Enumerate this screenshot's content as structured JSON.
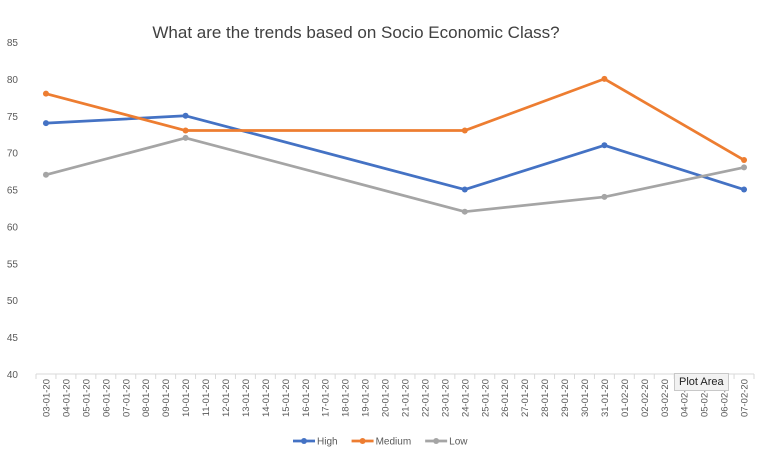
{
  "chart_data": {
    "type": "line",
    "title": "What are the trends based on Socio Economic Class?",
    "xlabel": "",
    "ylabel": "",
    "ylim": [
      40,
      85
    ],
    "yticks": [
      40,
      45,
      50,
      55,
      60,
      65,
      70,
      75,
      80,
      85
    ],
    "categories": [
      "03-01-20",
      "04-01-20",
      "05-01-20",
      "06-01-20",
      "07-01-20",
      "08-01-20",
      "09-01-20",
      "10-01-20",
      "11-01-20",
      "12-01-20",
      "13-01-20",
      "14-01-20",
      "15-01-20",
      "16-01-20",
      "17-01-20",
      "18-01-20",
      "19-01-20",
      "20-01-20",
      "21-01-20",
      "22-01-20",
      "23-01-20",
      "24-01-20",
      "25-01-20",
      "26-01-20",
      "27-01-20",
      "28-01-20",
      "29-01-20",
      "30-01-20",
      "31-01-20",
      "01-02-20",
      "02-02-20",
      "03-02-20",
      "04-02-20",
      "05-02-20",
      "06-02-20",
      "07-02-20"
    ],
    "grid": false,
    "legend_position": "bottom",
    "series": [
      {
        "name": "High",
        "color": "#4472c4",
        "points": [
          {
            "x": "03-01-20",
            "y": 74
          },
          {
            "x": "10-01-20",
            "y": 75
          },
          {
            "x": "24-01-20",
            "y": 65
          },
          {
            "x": "31-01-20",
            "y": 71
          },
          {
            "x": "07-02-20",
            "y": 65
          }
        ]
      },
      {
        "name": "Medium",
        "color": "#ed7d31",
        "points": [
          {
            "x": "03-01-20",
            "y": 78
          },
          {
            "x": "10-01-20",
            "y": 73
          },
          {
            "x": "24-01-20",
            "y": 73
          },
          {
            "x": "31-01-20",
            "y": 80
          },
          {
            "x": "07-02-20",
            "y": 69
          }
        ]
      },
      {
        "name": "Low",
        "color": "#a5a5a5",
        "points": [
          {
            "x": "03-01-20",
            "y": 67
          },
          {
            "x": "10-01-20",
            "y": 72
          },
          {
            "x": "24-01-20",
            "y": 62
          },
          {
            "x": "31-01-20",
            "y": 64
          },
          {
            "x": "07-02-20",
            "y": 68
          }
        ]
      }
    ]
  },
  "tooltip": {
    "text": "Plot Area"
  }
}
